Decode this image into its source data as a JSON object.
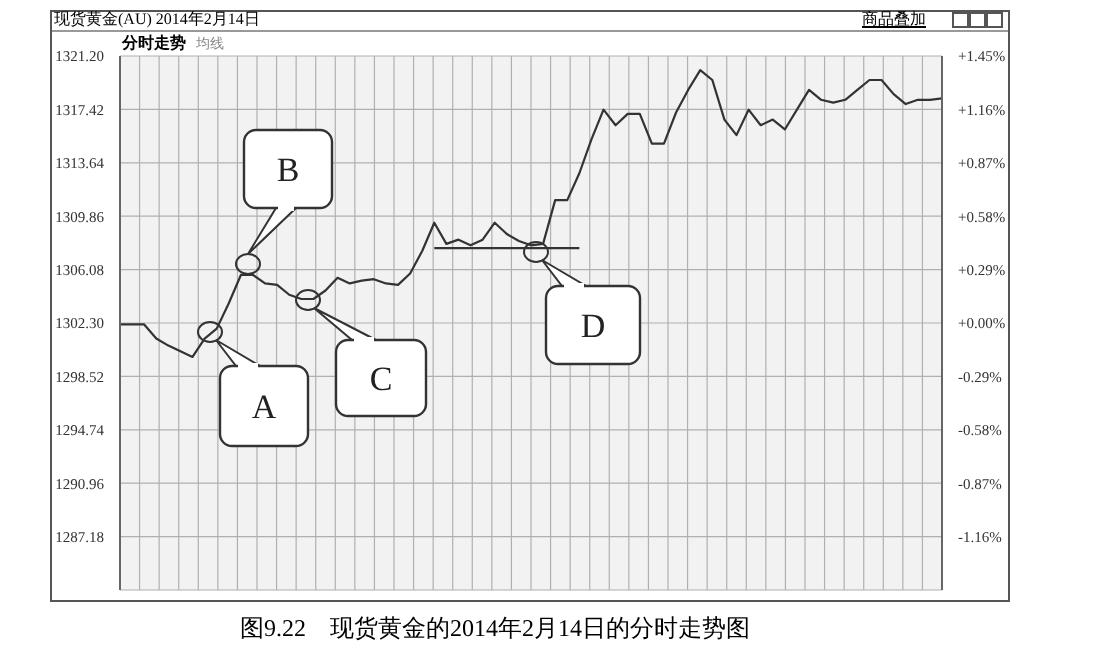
{
  "chart_data": {
    "type": "line",
    "title": "现货黄金(AU) 2014年2月14日",
    "categories": [
      null,
      null,
      null,
      null,
      null,
      null,
      null,
      null,
      null,
      null,
      null,
      null,
      null,
      null,
      null,
      null,
      null,
      null,
      null,
      null,
      null,
      null,
      null,
      null,
      null,
      null,
      null,
      null,
      null,
      null,
      null,
      null,
      null,
      null,
      null,
      null,
      null,
      null,
      null,
      null,
      null,
      null,
      null,
      null,
      null,
      null,
      null,
      null,
      null,
      null,
      null,
      null,
      null,
      null,
      null,
      null,
      null,
      null,
      null,
      null,
      null,
      null,
      null,
      null,
      null,
      null,
      null,
      null,
      null
    ],
    "series": [
      {
        "color": "#333333",
        "values": [
          1302.2,
          1302.2,
          1302.2,
          1301.2,
          1300.7,
          1300.3,
          1299.9,
          1301.2,
          1301.9,
          1303.7,
          1305.7,
          1305.7,
          1305.1,
          1305.0,
          1304.3,
          1304.0,
          1304.0,
          1304.6,
          1305.5,
          1305.1,
          1305.3,
          1305.4,
          1305.1,
          1305.0,
          1305.8,
          1307.4,
          1309.4,
          1307.9,
          1308.2,
          1307.8,
          1308.2,
          1309.4,
          1308.6,
          1308.1,
          1307.8,
          1307.9,
          1311.0,
          1311.0,
          1312.9,
          1315.3,
          1317.4,
          1316.3,
          1317.1,
          1317.1,
          1315.0,
          1315.0,
          1317.2,
          1318.8,
          1320.2,
          1319.5,
          1316.7,
          1315.6,
          1317.4,
          1316.3,
          1316.7,
          1316.0,
          1317.4,
          1318.8,
          1318.1,
          1317.9,
          1318.1,
          1318.8,
          1319.5,
          1319.5,
          1318.5,
          1317.8,
          1318.1,
          1318.1,
          1318.2
        ]
      }
    ],
    "ylim": [
      1283.4,
      1321.2
    ],
    "yticks": [
      1287.18,
      1290.96,
      1294.74,
      1298.52,
      {
        "value": 1302.3,
        "label": "1302.30"
      },
      1306.08,
      1309.86,
      1313.64,
      1317.42,
      {
        "value": 1321.2,
        "label": "1321.20"
      }
    ],
    "y2lim": [
      -1.45,
      1.45
    ],
    "y2ticks": [
      {
        "value": -1.16,
        "label": "-1.16%"
      },
      {
        "value": -0.87,
        "label": "-0.87%"
      },
      {
        "value": -0.58,
        "label": "-0.58%"
      },
      {
        "value": -0.29,
        "label": "-0.29%"
      },
      {
        "value": 0,
        "label": "+0.00%"
      },
      {
        "value": 0.29,
        "label": "+0.29%"
      },
      {
        "value": 0.58,
        "label": "+0.58%"
      },
      {
        "value": 0.87,
        "label": "+0.87%"
      },
      {
        "value": 1.16,
        "label": "+1.16%"
      },
      {
        "value": 1.45,
        "label": "+1.45%"
      }
    ],
    "ref_lines": [
      {
        "axis": "y",
        "value": 1307.6,
        "color": "#333333"
      }
    ],
    "grid": true,
    "tick_labels": "y",
    "marker": "none",
    "line_style": "solid",
    "annotations": [
      "A",
      "B",
      "C",
      "D",
      "分时走势",
      "均线",
      "商品叠加",
      "图9.22　现货黄金的2014年2月14日的分时走势图"
    ]
  }
}
